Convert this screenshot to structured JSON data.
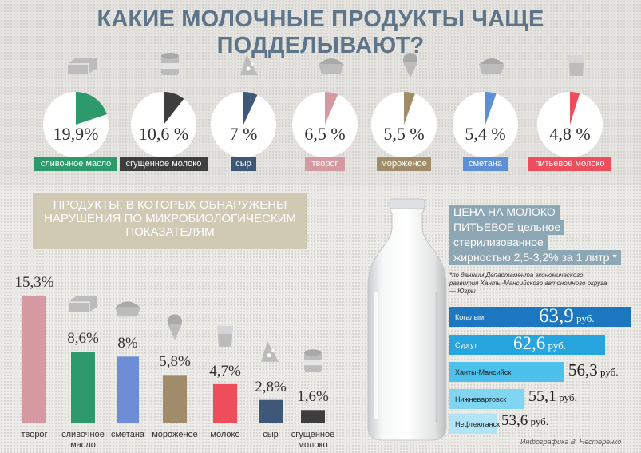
{
  "title": "КАКИЕ МОЛОЧНЫЕ ПРОДУКТЫ ЧАЩЕ ПОДДЕЛЫВАЮТ?",
  "chart_data": [
    {
      "type": "pie",
      "title": "КАКИЕ МОЛОЧНЫЕ ПРОДУКТЫ ЧАЩЕ ПОДДЕЛЫВАЮТ?",
      "categories": [
        "сливочное масло",
        "сгущенное молоко",
        "сыр",
        "творог",
        "мороженое",
        "сметана",
        "питьевое молоко"
      ],
      "values": [
        19.9,
        10.6,
        7,
        6.5,
        5.5,
        5.4,
        4.8
      ],
      "value_labels": [
        "19,9%",
        "10,6 %",
        "7 %",
        "6,5 %",
        "5,5 %",
        "5,4 %",
        "4,8 %"
      ],
      "colors": [
        "#2e9a6c",
        "#3e3e3e",
        "#3f5878",
        "#d59aa1",
        "#a08c68",
        "#5e8ed8",
        "#ee4d5c"
      ]
    },
    {
      "type": "bar",
      "title": "ПРОДУКТЫ, В КОТОРЫХ ОБНАРУЖЕНЫ НАРУШЕНИЯ ПО МИКРОБИОЛОГИЧЕСКИМ ПОКАЗАТЕЛЯМ",
      "categories": [
        "творог",
        "сливочное масло",
        "сметана",
        "мороженое",
        "молоко",
        "сыр",
        "сгущенное молоко"
      ],
      "values": [
        15.3,
        8.6,
        8,
        5.8,
        4.7,
        2.8,
        1.6
      ],
      "value_labels": [
        "15,3%",
        "8,6%",
        "8%",
        "5,8%",
        "4,7%",
        "2,8%",
        "1,6%"
      ],
      "colors": [
        "#d59aa1",
        "#2e9a6c",
        "#6d8ed6",
        "#a08c68",
        "#ee4d5c",
        "#3f5878",
        "#3e3e3e"
      ]
    },
    {
      "type": "bar",
      "title": "ЦЕНА НА МОЛОКО ПИТЬЕВОЕ цельное стерилизованное жирностью 2,5-3,2% за 1 литр *",
      "categories": [
        "Когалым",
        "Сургут",
        "Ханты-Мансийск",
        "Нижневартовск",
        "Нефтеюганск"
      ],
      "values": [
        63.9,
        62.6,
        56.3,
        55.1,
        53.6
      ],
      "value_labels": [
        "63,9",
        "62,6",
        "56,3",
        "55,1",
        "53,6"
      ],
      "unit": "руб.",
      "colors": [
        "#1c77c0",
        "#27a5de",
        "#4dc1ec",
        "#7fd5f2",
        "#b1e4f6"
      ]
    }
  ],
  "bar_title_lines": [
    "ПРОДУКТЫ, В КОТОРЫХ ОБНАРУЖЕНЫ",
    "НАРУШЕНИЯ ПО МИКРОБИОЛОГИЧЕСКИМ",
    "ПОКАЗАТЕЛЯМ"
  ],
  "bar_label_lines": [
    [
      "творог"
    ],
    [
      "сливочное",
      "масло"
    ],
    [
      "сметана"
    ],
    [
      "мороженое"
    ],
    [
      "молоко"
    ],
    [
      "сыр"
    ],
    [
      "сгущенное",
      "молоко"
    ]
  ],
  "price": {
    "head_lines": [
      "ЦЕНА НА МОЛОКО",
      "ПИТЬЕВОЕ цельное",
      "стерилизованное",
      "жирностью 2,5-3,2% за 1 литр *"
    ],
    "note": "*по данным Департамента экономического развития Ханты-Мансийского автономного округа — Югры"
  },
  "credit": "Инфографика В. Нестеренко"
}
